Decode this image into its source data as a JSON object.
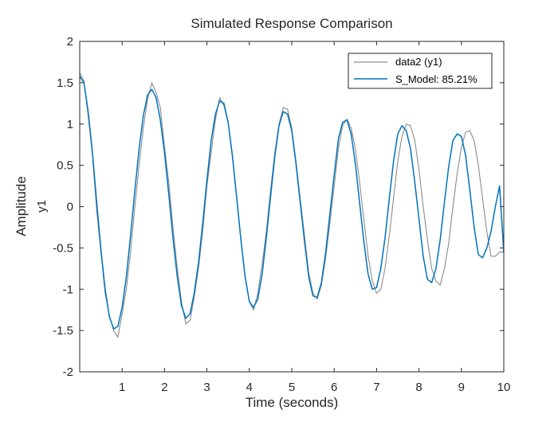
{
  "chart_data": {
    "type": "line",
    "title": "Simulated Response Comparison",
    "xlabel": "Time (seconds)",
    "ylabel": "Amplitude",
    "channel_label": "y1",
    "xlim": [
      0,
      10
    ],
    "ylim": [
      -2,
      2
    ],
    "xticks": [
      1,
      2,
      3,
      4,
      5,
      6,
      7,
      8,
      9,
      10
    ],
    "yticks": [
      -2,
      -1.5,
      -1,
      -0.5,
      0,
      0.5,
      1,
      1.5,
      2
    ],
    "grid": false,
    "legend": {
      "placement": "top-right"
    },
    "series": [
      {
        "name": "data2 (y1)",
        "color": "#8c8c8c",
        "x": [
          0,
          0.1,
          0.2,
          0.3,
          0.4,
          0.5,
          0.6,
          0.7,
          0.8,
          0.9,
          1.0,
          1.1,
          1.2,
          1.3,
          1.4,
          1.5,
          1.6,
          1.7,
          1.8,
          1.9,
          2.0,
          2.1,
          2.2,
          2.3,
          2.4,
          2.5,
          2.6,
          2.7,
          2.8,
          2.9,
          3.0,
          3.1,
          3.2,
          3.3,
          3.4,
          3.5,
          3.6,
          3.7,
          3.8,
          3.9,
          4.0,
          4.1,
          4.2,
          4.3,
          4.4,
          4.5,
          4.6,
          4.7,
          4.8,
          4.9,
          5.0,
          5.1,
          5.2,
          5.3,
          5.4,
          5.5,
          5.6,
          5.7,
          5.8,
          5.9,
          6.0,
          6.1,
          6.2,
          6.3,
          6.4,
          6.5,
          6.6,
          6.7,
          6.8,
          6.9,
          7.0,
          7.1,
          7.2,
          7.3,
          7.4,
          7.5,
          7.6,
          7.7,
          7.8,
          7.9,
          8.0,
          8.1,
          8.2,
          8.3,
          8.4,
          8.5,
          8.6,
          8.7,
          8.8,
          8.9,
          9.0,
          9.1,
          9.2,
          9.3,
          9.4,
          9.5,
          9.6,
          9.7,
          9.8,
          9.9,
          10.0
        ],
        "values": [
          1.62,
          1.52,
          1.1,
          0.62,
          -0.05,
          -0.55,
          -1.05,
          -1.32,
          -1.5,
          -1.58,
          -1.3,
          -1.0,
          -0.55,
          0.0,
          0.5,
          0.95,
          1.3,
          1.5,
          1.38,
          1.2,
          0.72,
          0.3,
          -0.25,
          -0.75,
          -1.15,
          -1.42,
          -1.38,
          -1.1,
          -0.75,
          -0.3,
          0.25,
          0.65,
          1.05,
          1.32,
          1.22,
          1.02,
          0.6,
          0.12,
          -0.4,
          -0.85,
          -1.15,
          -1.25,
          -1.05,
          -0.7,
          -0.3,
          0.2,
          0.65,
          1.0,
          1.2,
          1.18,
          0.95,
          0.55,
          0.1,
          -0.35,
          -0.8,
          -1.05,
          -1.12,
          -0.95,
          -0.62,
          -0.2,
          0.25,
          0.7,
          0.98,
          1.06,
          0.95,
          0.7,
          0.3,
          -0.15,
          -0.6,
          -0.9,
          -1.05,
          -1.0,
          -0.75,
          -0.35,
          0.1,
          0.55,
          0.85,
          1.0,
          0.98,
          0.8,
          0.45,
          0.0,
          -0.4,
          -0.75,
          -0.9,
          -0.95,
          -0.75,
          -0.45,
          0.0,
          0.4,
          0.72,
          0.9,
          0.92,
          0.8,
          0.5,
          0.1,
          -0.3,
          -0.6,
          -0.6,
          -0.55,
          -0.55
        ]
      },
      {
        "name": "S_Model: 85.21%",
        "color": "#0072bd",
        "x": [
          0,
          0.1,
          0.2,
          0.3,
          0.4,
          0.5,
          0.6,
          0.7,
          0.8,
          0.9,
          1.0,
          1.1,
          1.2,
          1.3,
          1.4,
          1.5,
          1.6,
          1.7,
          1.8,
          1.9,
          2.0,
          2.1,
          2.2,
          2.3,
          2.4,
          2.5,
          2.6,
          2.7,
          2.8,
          2.9,
          3.0,
          3.1,
          3.2,
          3.3,
          3.4,
          3.5,
          3.6,
          3.7,
          3.8,
          3.9,
          4.0,
          4.1,
          4.2,
          4.3,
          4.4,
          4.5,
          4.6,
          4.7,
          4.8,
          4.9,
          5.0,
          5.1,
          5.2,
          5.3,
          5.4,
          5.5,
          5.6,
          5.7,
          5.8,
          5.9,
          6.0,
          6.1,
          6.2,
          6.3,
          6.4,
          6.5,
          6.6,
          6.7,
          6.8,
          6.9,
          7.0,
          7.1,
          7.2,
          7.3,
          7.4,
          7.5,
          7.6,
          7.7,
          7.8,
          7.9,
          8.0,
          8.1,
          8.2,
          8.3,
          8.4,
          8.5,
          8.6,
          8.7,
          8.8,
          8.9,
          9.0,
          9.1,
          9.2,
          9.3,
          9.4,
          9.5,
          9.6,
          9.7,
          9.8,
          9.9,
          10.0
        ],
        "values": [
          1.58,
          1.5,
          1.15,
          0.65,
          0.05,
          -0.52,
          -1.0,
          -1.33,
          -1.48,
          -1.45,
          -1.22,
          -0.85,
          -0.35,
          0.2,
          0.7,
          1.1,
          1.35,
          1.42,
          1.32,
          1.05,
          0.65,
          0.15,
          -0.38,
          -0.85,
          -1.2,
          -1.35,
          -1.3,
          -1.05,
          -0.68,
          -0.2,
          0.32,
          0.8,
          1.12,
          1.28,
          1.25,
          1.02,
          0.62,
          0.12,
          -0.4,
          -0.85,
          -1.15,
          -1.22,
          -1.12,
          -0.82,
          -0.38,
          0.12,
          0.6,
          0.98,
          1.15,
          1.12,
          0.92,
          0.52,
          0.05,
          -0.42,
          -0.85,
          -1.08,
          -1.1,
          -0.92,
          -0.55,
          -0.08,
          0.38,
          0.82,
          1.02,
          1.05,
          0.88,
          0.52,
          0.05,
          -0.42,
          -0.82,
          -1.0,
          -0.98,
          -0.75,
          -0.38,
          0.1,
          0.55,
          0.88,
          0.98,
          0.92,
          0.7,
          0.3,
          -0.15,
          -0.6,
          -0.88,
          -0.92,
          -0.75,
          -0.4,
          0.05,
          0.48,
          0.8,
          0.88,
          0.85,
          0.62,
          0.2,
          -0.25,
          -0.58,
          -0.62,
          -0.5,
          -0.3,
          0.0,
          0.25,
          -0.55
        ]
      }
    ]
  }
}
